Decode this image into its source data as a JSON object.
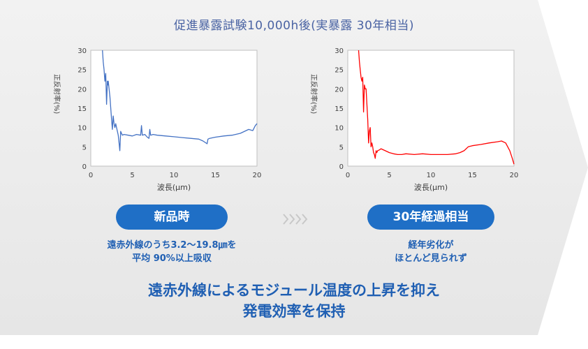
{
  "title": "促進暴露試験10,000h後(実暴露 30年相当)",
  "labels": {
    "new": "新品時",
    "thirty": "30年経過相当"
  },
  "descriptions": {
    "new": [
      "遠赤外線のうち3.2～19.8㎛を",
      "平均 90%以上吸収"
    ],
    "thirty": [
      "経年劣化が",
      "ほとんど見られず"
    ]
  },
  "headline": [
    "遠赤外線によるモジュール温度の上昇を抑え",
    "発電効率を保持"
  ],
  "colors": {
    "new_series": "#4472c4",
    "thirty_series": "#ff0000",
    "accent": "#1f6fc6",
    "title_text": "#4a63a3",
    "background_band": "#ededed"
  },
  "chart_data": [
    {
      "type": "line",
      "xlabel": "波長(μm)",
      "ylabel": "正反射率(%)",
      "xlim": [
        0,
        20
      ],
      "ylim": [
        0,
        30
      ],
      "xticks": [
        0,
        5,
        10,
        15,
        20
      ],
      "yticks": [
        0,
        5,
        10,
        15,
        20,
        25,
        30
      ],
      "grid": false,
      "series": [
        {
          "color": "#4472c4",
          "x": [
            1.4,
            1.5,
            1.6,
            1.7,
            1.8,
            1.9,
            2.0,
            2.05,
            2.1,
            2.2,
            2.3,
            2.5,
            2.6,
            2.7,
            2.8,
            2.9,
            3.0,
            3.1,
            3.2,
            3.3,
            3.4,
            3.5,
            3.6,
            3.8,
            4.0,
            4.5,
            5.0,
            5.5,
            6.0,
            6.1,
            6.2,
            6.5,
            6.8,
            7.0,
            7.1,
            7.2,
            7.5,
            8.0,
            9.0,
            10.0,
            11.0,
            12.0,
            13.0,
            13.5,
            14.0,
            14.1,
            14.3,
            15.0,
            16.0,
            17.0,
            18.0,
            19.0,
            19.5,
            19.8,
            20.0
          ],
          "y": [
            30,
            27,
            25,
            22,
            24,
            16,
            22,
            21,
            22,
            20,
            18,
            12,
            9.5,
            13,
            11,
            10,
            11,
            10,
            9,
            8,
            6,
            4,
            9,
            8,
            8.2,
            8.0,
            7.8,
            8.2,
            8.0,
            10.5,
            8.0,
            8.2,
            7.5,
            7.2,
            9.5,
            8.0,
            8.2,
            8.0,
            7.8,
            7.6,
            7.4,
            7.2,
            7.0,
            6.5,
            5.8,
            7.0,
            7.2,
            7.5,
            7.8,
            8.0,
            8.5,
            9.5,
            9.2,
            10.5,
            11.0
          ]
        }
      ]
    },
    {
      "type": "line",
      "xlabel": "波長(μm)",
      "ylabel": "正反射率(%)",
      "xlim": [
        0,
        20
      ],
      "ylim": [
        0,
        30
      ],
      "xticks": [
        0,
        5,
        10,
        15,
        20
      ],
      "yticks": [
        0,
        5,
        10,
        15,
        20,
        25,
        30
      ],
      "grid": false,
      "series": [
        {
          "color": "#ff0000",
          "x": [
            1.3,
            1.4,
            1.5,
            1.6,
            1.7,
            1.8,
            1.9,
            2.0,
            2.1,
            2.2,
            2.3,
            2.4,
            2.5,
            2.6,
            2.7,
            2.8,
            2.9,
            3.0,
            3.1,
            3.2,
            3.3,
            3.4,
            3.5,
            3.6,
            3.8,
            4.0,
            4.5,
            5.0,
            5.5,
            6.0,
            6.5,
            7.0,
            8.0,
            9.0,
            10.0,
            11.0,
            12.0,
            13.0,
            13.5,
            14.0,
            14.5,
            15.0,
            16.0,
            17.0,
            18.0,
            18.5,
            19.0,
            19.5,
            19.8,
            20.0
          ],
          "y": [
            30,
            27,
            25,
            23,
            22,
            23,
            14,
            21,
            20,
            20,
            16,
            12,
            6,
            9,
            10,
            5,
            6,
            5,
            3.5,
            3,
            2,
            4,
            3.5,
            4,
            4.2,
            4.5,
            4.0,
            3.5,
            3.2,
            3.0,
            3.0,
            3.2,
            3.0,
            3.2,
            3.0,
            3.0,
            3.0,
            3.2,
            3.5,
            4.0,
            5.0,
            5.3,
            5.6,
            6.0,
            6.3,
            6.5,
            6.0,
            4.0,
            2.0,
            0.5
          ]
        }
      ]
    }
  ]
}
